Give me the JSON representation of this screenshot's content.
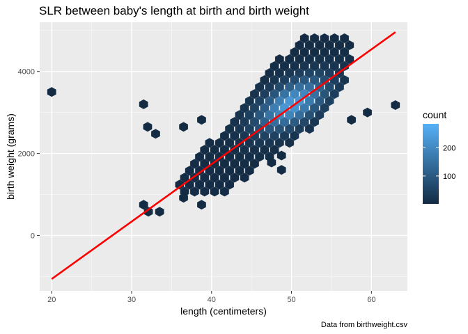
{
  "chart_data": {
    "type": "hexbin",
    "title": "SLR between baby's length at birth and birth weight",
    "xlabel": "length (centimeters)",
    "ylabel": "birth weight (grams)",
    "caption": "Data from birthweight.csv",
    "xlim": [
      18.5,
      64.5
    ],
    "ylim": [
      -1350,
      5200
    ],
    "x_ticks": [
      20,
      30,
      40,
      50,
      60
    ],
    "y_ticks": [
      0,
      2000,
      4000
    ],
    "grid": true,
    "background": "#ebebeb",
    "legend": {
      "title": "count",
      "ticks": [
        100,
        200
      ],
      "range": [
        1,
        285
      ],
      "low_color": "#132b43",
      "high_color": "#56b1f7",
      "placement": "right"
    },
    "regression_line": {
      "x": [
        20,
        63
      ],
      "y": [
        -1060,
        4960
      ],
      "color": "#ff0000"
    },
    "hexbin": {
      "binwidth_x": 1.25,
      "binwidth_y": 200,
      "cells": [
        {
          "x": 20,
          "y": 3500,
          "count": 1
        },
        {
          "x": 31.5,
          "y": 3200,
          "count": 1
        },
        {
          "x": 32,
          "y": 2650,
          "count": 1
        },
        {
          "x": 33,
          "y": 2480,
          "count": 1
        },
        {
          "x": 36.5,
          "y": 2650,
          "count": 1
        },
        {
          "x": 38.75,
          "y": 2820,
          "count": 1
        },
        {
          "x": 31.5,
          "y": 750,
          "count": 1
        },
        {
          "x": 32.1,
          "y": 580,
          "count": 1
        },
        {
          "x": 33.5,
          "y": 580,
          "count": 1
        },
        {
          "x": 38.75,
          "y": 750,
          "count": 1
        },
        {
          "x": 36.5,
          "y": 920,
          "count": 1
        },
        {
          "x": 63,
          "y": 3180,
          "count": 1
        },
        {
          "x": 59.5,
          "y": 3000,
          "count": 2
        },
        {
          "x": 57.5,
          "y": 2820,
          "count": 1
        },
        {
          "x": 48.75,
          "y": 1950,
          "count": 1
        },
        {
          "x": 47.5,
          "y": 1780,
          "count": 2
        },
        {
          "x": 48.75,
          "y": 1600,
          "count": 2
        }
      ],
      "dense_region": {
        "lower": [
          [
            36,
            1000
          ],
          [
            42,
            1050
          ],
          [
            46,
            1700
          ],
          [
            50,
            2200
          ],
          [
            54,
            2900
          ],
          [
            57,
            3600
          ],
          [
            57.5,
            4800
          ]
        ],
        "upper": [
          [
            36,
            1350
          ],
          [
            38,
            2100
          ],
          [
            42,
            2600
          ],
          [
            45,
            3400
          ],
          [
            47,
            4000
          ],
          [
            49,
            4400
          ],
          [
            52,
            4900
          ],
          [
            57.5,
            4800
          ]
        ]
      }
    }
  }
}
